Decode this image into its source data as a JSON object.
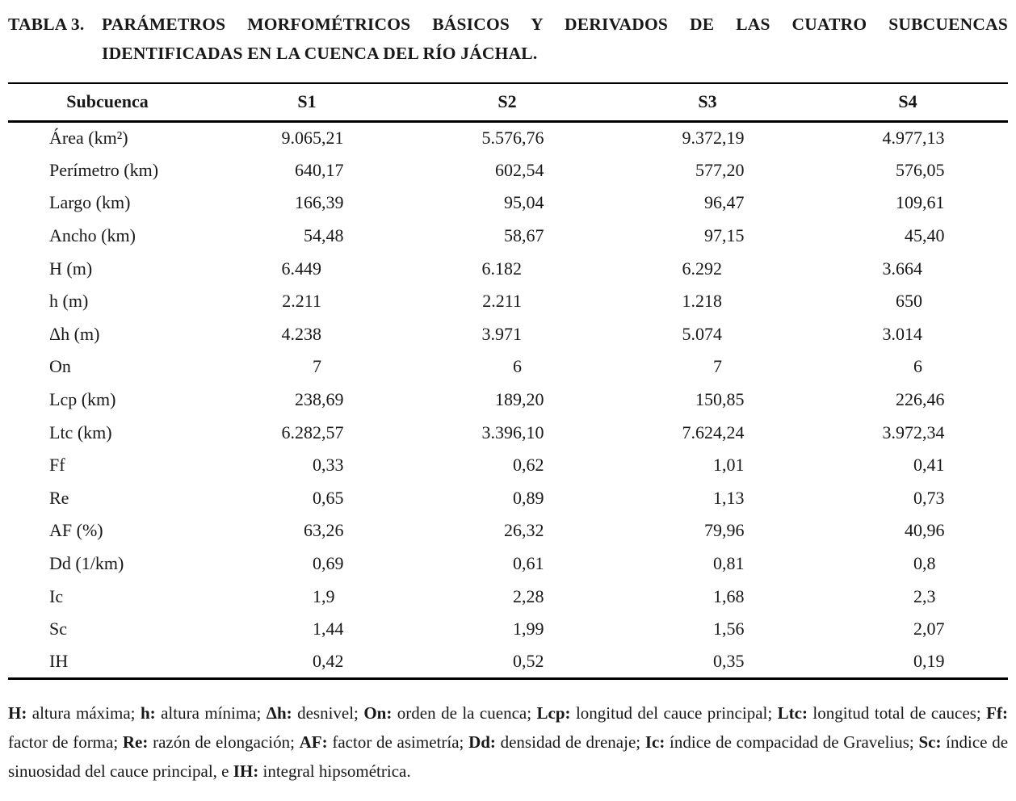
{
  "caption": {
    "label": "TABLA 3.",
    "lines": [
      "PARÁMETROS MORFOMÉTRICOS BÁSICOS Y DERIVADOS DE LAS CUATRO SUBCUENCAS",
      "IDENTIFICADAS EN LA CUENCA DEL RÍO JÁCHAL."
    ]
  },
  "table": {
    "columns": [
      "Subcuenca",
      "S1",
      "S2",
      "S3",
      "S4"
    ],
    "rows": [
      {
        "label": "Área (km²)",
        "values": [
          "9.065,21",
          "5.576,76",
          "9.372,19",
          "4.977,13"
        ]
      },
      {
        "label": "Perímetro (km)",
        "values": [
          "640,17",
          "602,54",
          "577,20",
          "576,05"
        ]
      },
      {
        "label": "Largo (km)",
        "values": [
          "166,39",
          "95,04",
          "96,47",
          "109,61"
        ]
      },
      {
        "label": "Ancho (km)",
        "values": [
          "54,48",
          "58,67",
          "97,15",
          "45,40"
        ]
      },
      {
        "label": "H (m)",
        "values": [
          "6.449",
          "6.182",
          "6.292",
          "3.664"
        ]
      },
      {
        "label": "h (m)",
        "values": [
          "2.211",
          "2.211",
          "1.218",
          "650"
        ]
      },
      {
        "label": "Δh (m)",
        "values": [
          "4.238",
          "3.971",
          "5.074",
          "3.014"
        ]
      },
      {
        "label": "On",
        "values": [
          "7",
          "6",
          "7",
          "6"
        ]
      },
      {
        "label": "Lcp (km)",
        "values": [
          "238,69",
          "189,20",
          "150,85",
          "226,46"
        ]
      },
      {
        "label": "Ltc (km)",
        "values": [
          "6.282,57",
          "3.396,10",
          "7.624,24",
          "3.972,34"
        ]
      },
      {
        "label": "Ff",
        "values": [
          "0,33",
          "0,62",
          "1,01",
          "0,41"
        ]
      },
      {
        "label": "Re",
        "values": [
          "0,65",
          "0,89",
          "1,13",
          "0,73"
        ]
      },
      {
        "label": "AF (%)",
        "values": [
          "63,26",
          "26,32",
          "79,96",
          "40,96"
        ]
      },
      {
        "label": "Dd (1/km)",
        "values": [
          "0,69",
          "0,61",
          "0,81",
          "0,8"
        ]
      },
      {
        "label": "Ic",
        "values": [
          "1,9",
          "2,28",
          "1,68",
          "2,3"
        ]
      },
      {
        "label": "Sc",
        "values": [
          "1,44",
          "1,99",
          "1,56",
          "2,07"
        ]
      },
      {
        "label": "IH",
        "values": [
          "0,42",
          "0,52",
          "0,35",
          "0,19"
        ]
      }
    ]
  },
  "footnote": {
    "items": [
      {
        "term": "H",
        "def": "altura máxima",
        "sep": "; "
      },
      {
        "term": "h",
        "def": "altura mínima",
        "sep": "; "
      },
      {
        "term": "Δh",
        "def": "desnivel",
        "sep": "; "
      },
      {
        "term": "On",
        "def": "orden de la cuenca",
        "sep": "; "
      },
      {
        "term": "Lcp",
        "def": "longitud del cauce principal",
        "sep": "; "
      },
      {
        "term": "Ltc",
        "def": "longitud total de cauces",
        "sep": "; "
      },
      {
        "term": "Ff",
        "def": "factor de forma",
        "sep": "; "
      },
      {
        "term": "Re",
        "def": "razón de elongación",
        "sep": "; "
      },
      {
        "term": "AF",
        "def": "factor de asimetría",
        "sep": "; "
      },
      {
        "term": "Dd",
        "def": "densidad de drenaje",
        "sep": "; "
      },
      {
        "term": "Ic",
        "def": "índice de compacidad de Gravelius",
        "sep": "; "
      },
      {
        "term": "Sc",
        "def": "índice de sinuosidad del cauce principal",
        "sep": ", e "
      },
      {
        "term": "IH",
        "def": "integral hipsométrica",
        "sep": "."
      }
    ]
  },
  "colors": {
    "text": "#181818",
    "rule": "#000000",
    "background": "#ffffff"
  }
}
